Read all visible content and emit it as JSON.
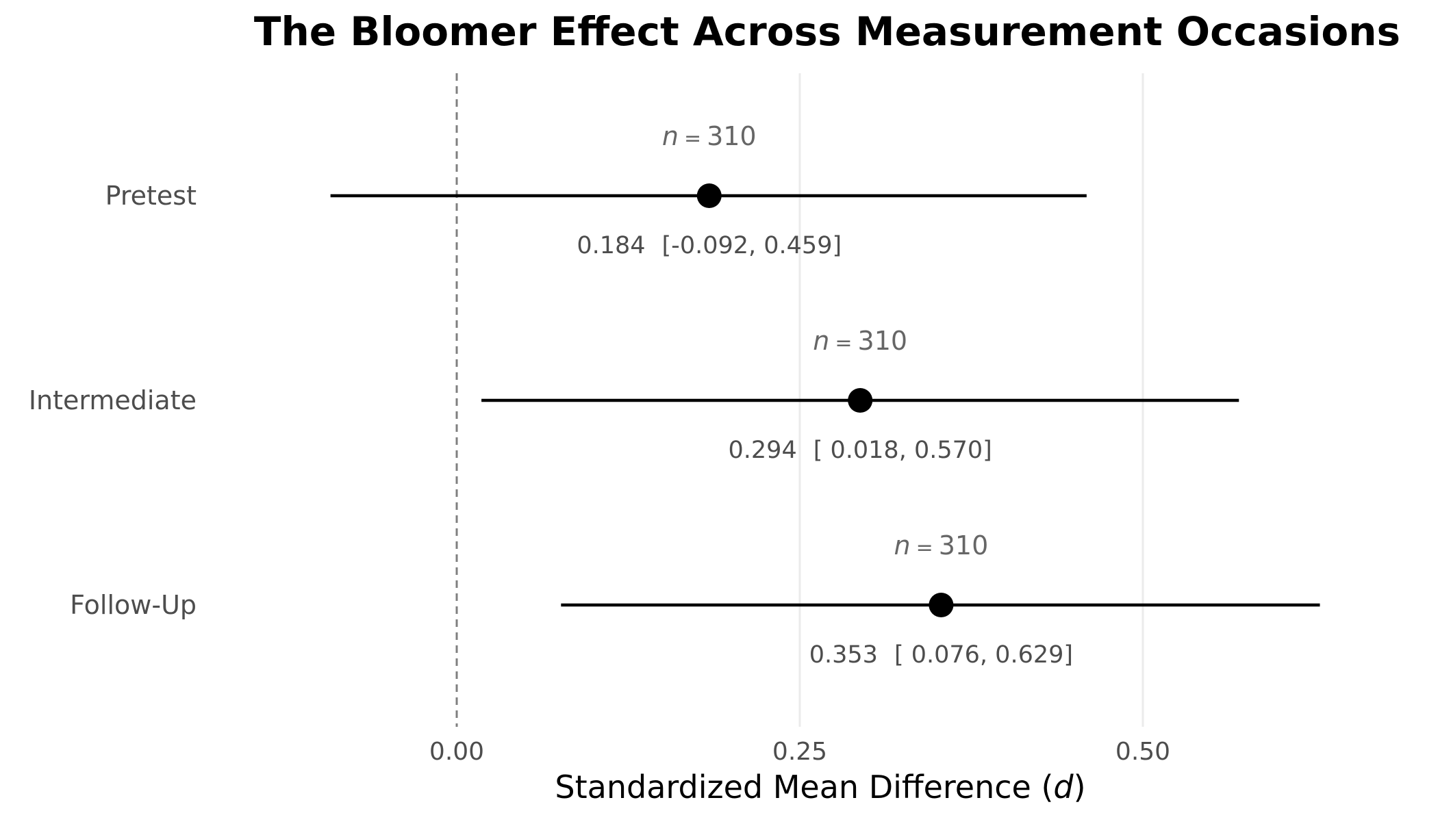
{
  "chart_data": {
    "type": "forest",
    "title": "The Bloomer Effect Across Measurement Occasions",
    "xlabel_text": "Standardized Mean Difference (",
    "xlabel_symbol": "d",
    "xlabel_close": ")",
    "xlim": [
      -0.2,
      0.64
    ],
    "xticks": [
      0.0,
      0.25,
      0.5
    ],
    "xtick_labels": [
      "0.00",
      "0.25",
      "0.50"
    ],
    "reference_line": 0,
    "grid": "vertical",
    "rows": [
      {
        "label": "Pretest",
        "estimate": 0.184,
        "ci_low": -0.092,
        "ci_high": 0.459,
        "n_symbol": "n",
        "n_eq": "=",
        "n_value": "310",
        "estimate_label": "0.184",
        "ci_label": "[-0.092, 0.459]"
      },
      {
        "label": "Intermediate",
        "estimate": 0.294,
        "ci_low": 0.018,
        "ci_high": 0.57,
        "n_symbol": "n",
        "n_eq": "=",
        "n_value": "310",
        "estimate_label": "0.294",
        "ci_label": "[ 0.018, 0.570]"
      },
      {
        "label": "Follow-Up",
        "estimate": 0.353,
        "ci_low": 0.076,
        "ci_high": 0.629,
        "n_symbol": "n",
        "n_eq": "=",
        "n_value": "310",
        "estimate_label": "0.353",
        "ci_label": "[ 0.076, 0.629]"
      }
    ]
  }
}
